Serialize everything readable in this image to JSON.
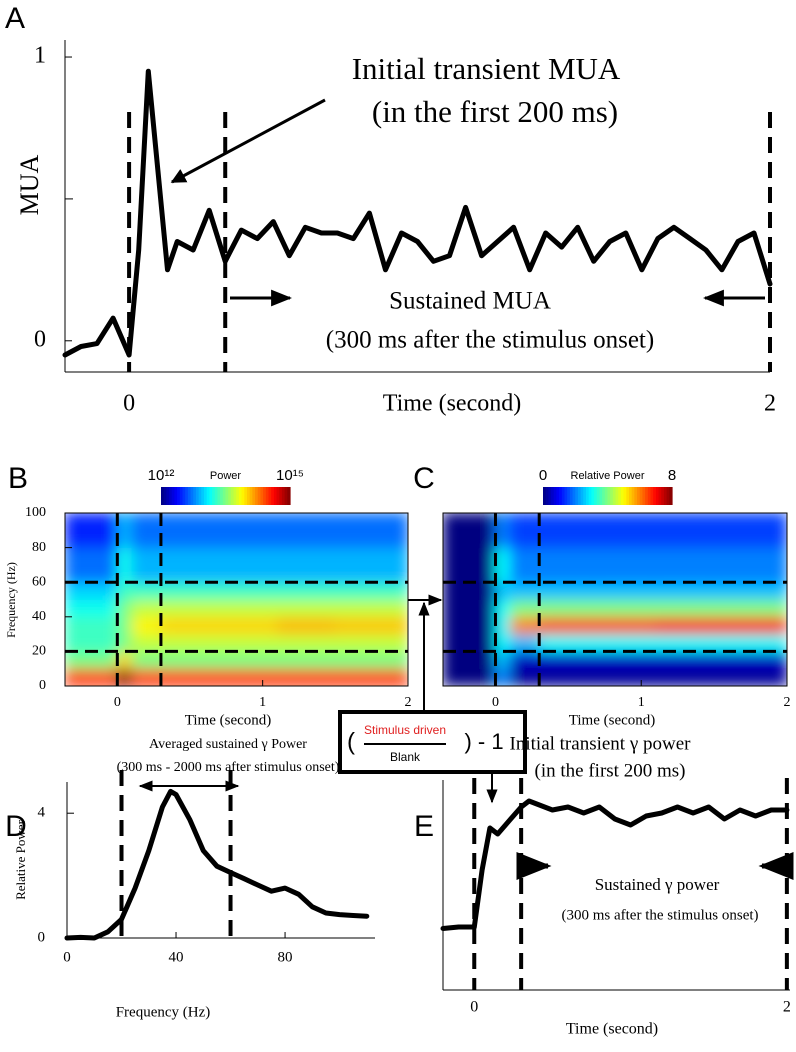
{
  "chart_data": [
    {
      "type": "line",
      "panel_label": "A",
      "ylabel": "MUA",
      "xlabel": "Time (second)",
      "x": [
        -0.2,
        -0.15,
        -0.1,
        -0.05,
        0,
        0.03,
        0.06,
        0.09,
        0.12,
        0.15,
        0.2,
        0.25,
        0.3,
        0.35,
        0.4,
        0.45,
        0.5,
        0.55,
        0.6,
        0.65,
        0.7,
        0.75,
        0.8,
        0.85,
        0.9,
        0.95,
        1.0,
        1.05,
        1.1,
        1.15,
        1.2,
        1.25,
        1.3,
        1.35,
        1.4,
        1.45,
        1.5,
        1.55,
        1.6,
        1.65,
        1.7,
        1.75,
        1.8,
        1.85,
        1.9,
        1.95,
        2.0
      ],
      "values": [
        -0.05,
        -0.02,
        -0.01,
        0.08,
        -0.05,
        0.32,
        0.95,
        0.6,
        0.25,
        0.35,
        0.32,
        0.46,
        0.28,
        0.39,
        0.36,
        0.42,
        0.3,
        0.4,
        0.38,
        0.38,
        0.36,
        0.45,
        0.25,
        0.38,
        0.35,
        0.28,
        0.3,
        0.47,
        0.3,
        0.35,
        0.4,
        0.25,
        0.38,
        0.33,
        0.4,
        0.28,
        0.35,
        0.38,
        0.25,
        0.36,
        0.4,
        0.36,
        0.32,
        0.25,
        0.35,
        0.38,
        0.2
      ],
      "color": "#000000",
      "xlim": [
        -0.2,
        2.0
      ],
      "ylim": [
        -0.11,
        1.06
      ],
      "xticks": [
        0,
        2
      ],
      "yticks": [
        0,
        1
      ],
      "yminorticks": [
        0.5
      ],
      "vlines": [
        0,
        0.3,
        2
      ],
      "annotations": [
        "Initial transient MUA",
        "(in the first 200 ms)",
        "Sustained MUA",
        "(300 ms after the stimulus onset)"
      ]
    },
    {
      "type": "heatmap",
      "panel_label": "B",
      "ylabel": "Frequency (Hz)",
      "xlabel": "Time (second)",
      "x_edges": [
        -0.36,
        0,
        0.1,
        0.3,
        0.7,
        1.1,
        1.5,
        2.0
      ],
      "y_edges": [
        0,
        10,
        20,
        30,
        40,
        50,
        60,
        80,
        100
      ],
      "z": [
        [
          300000000000000.0,
          1000000000000000.0,
          300000000000000.0,
          300000000000000.0,
          300000000000000.0,
          300000000000000.0,
          300000000000000.0
        ],
        [
          30000000000000.0,
          100000000000000.0,
          30000000000000.0,
          30000000000000.0,
          30000000000000.0,
          30000000000000.0,
          30000000000000.0
        ],
        [
          20000000000000.0,
          30000000000000.0,
          50000000000000.0,
          50000000000000.0,
          50000000000000.0,
          50000000000000.0,
          50000000000000.0
        ],
        [
          20000000000000.0,
          30000000000000.0,
          80000000000000.0,
          100000000000000.0,
          100000000000000.0,
          120000000000000.0,
          110000000000000.0
        ],
        [
          15000000000000.0,
          30000000000000.0,
          50000000000000.0,
          50000000000000.0,
          50000000000000.0,
          50000000000000.0,
          50000000000000.0
        ],
        [
          10000000000000.0,
          20000000000000.0,
          20000000000000.0,
          20000000000000.0,
          20000000000000.0,
          20000000000000.0,
          20000000000000.0
        ],
        [
          5000000000000.0,
          15000000000000.0,
          8000000000000.0,
          8000000000000.0,
          8000000000000.0,
          8000000000000.0,
          8000000000000.0
        ],
        [
          3000000000000.0,
          8000000000000.0,
          5000000000000.0,
          5000000000000.0,
          5000000000000.0,
          5000000000000.0,
          5000000000000.0
        ]
      ],
      "colormap": "jet",
      "color_scale": "log",
      "clim": [
        1000000000000.0,
        1000000000000000.0
      ],
      "cticks": [
        {
          "value": 1000000000000.0,
          "label": "10¹²"
        },
        {
          "value": 1000000000000000.0,
          "label": "10¹⁵"
        }
      ],
      "clabel": "Power",
      "xlim": [
        -0.36,
        2.0
      ],
      "ylim": [
        0,
        100
      ],
      "xticks": [
        0,
        1,
        2
      ],
      "yticks": [
        0,
        20,
        40,
        60,
        80,
        100
      ],
      "vlines": [
        0,
        0.3
      ],
      "hlines": [
        20,
        60
      ]
    },
    {
      "type": "heatmap",
      "panel_label": "C",
      "xlabel": "Time (second)",
      "x_edges": [
        -0.36,
        0,
        0.1,
        0.3,
        0.7,
        1.1,
        1.5,
        2.0
      ],
      "y_edges": [
        0,
        10,
        20,
        30,
        40,
        50,
        60,
        80,
        100
      ],
      "z": [
        [
          0,
          2,
          0.2,
          0.2,
          0.2,
          0.2,
          0.2
        ],
        [
          0,
          2.5,
          0.5,
          0.5,
          0.5,
          0.5,
          0.5
        ],
        [
          0,
          3,
          2.5,
          3,
          3,
          3,
          3
        ],
        [
          0,
          3,
          6,
          6.5,
          6.5,
          7,
          7
        ],
        [
          0,
          3,
          4,
          4,
          4,
          4,
          4
        ],
        [
          0,
          2.5,
          2.5,
          2.5,
          2.5,
          2.5,
          2.5
        ],
        [
          0,
          3,
          2,
          2,
          2,
          2,
          2
        ],
        [
          0,
          2,
          1.5,
          1.5,
          1.5,
          1.5,
          1.5
        ]
      ],
      "colormap": "jet",
      "color_scale": "linear",
      "clim": [
        0,
        8
      ],
      "cticks": [
        0,
        8
      ],
      "clabel": "Relative Power",
      "xlim": [
        -0.36,
        2.0
      ],
      "ylim": [
        0,
        100
      ],
      "xticks": [
        0,
        1,
        2
      ],
      "vlines": [
        0,
        0.3
      ],
      "hlines": [
        20,
        60
      ]
    },
    {
      "type": "line",
      "panel_label": "D",
      "ylabel": "Relative Power",
      "xlabel": "Frequency (Hz)",
      "x": [
        0,
        5,
        10,
        15,
        20,
        25,
        30,
        35,
        38,
        40,
        45,
        50,
        55,
        60,
        65,
        70,
        75,
        80,
        85,
        90,
        95,
        100,
        105,
        110
      ],
      "values": [
        0,
        0.02,
        0,
        0.2,
        0.6,
        1.6,
        2.8,
        4.2,
        4.7,
        4.6,
        3.8,
        2.8,
        2.3,
        2.1,
        1.9,
        1.7,
        1.5,
        1.6,
        1.4,
        1.0,
        0.8,
        0.75,
        0.72,
        0.7
      ],
      "color": "#000000",
      "xlim": [
        0,
        113
      ],
      "ylim": [
        0,
        5
      ],
      "xticks": [
        0,
        40,
        80
      ],
      "yticks": [
        0,
        4
      ],
      "vlines": [
        20,
        60
      ],
      "annotations": [
        "Averaged sustained γ Power",
        "(300 ms - 2000 ms after stimulus onset)"
      ]
    },
    {
      "type": "line",
      "panel_label": "E",
      "xlabel": "Time (second)",
      "x": [
        -0.2,
        -0.1,
        -0.05,
        0,
        0.05,
        0.1,
        0.15,
        0.2,
        0.25,
        0.3,
        0.35,
        0.4,
        0.5,
        0.6,
        0.7,
        0.8,
        0.9,
        1.0,
        1.1,
        1.2,
        1.3,
        1.4,
        1.5,
        1.6,
        1.7,
        1.8,
        1.9,
        2.0
      ],
      "values": [
        0.05,
        0.1,
        0.1,
        0.1,
        2.0,
        3.4,
        3.2,
        3.5,
        3.8,
        4.1,
        4.3,
        4.2,
        4.0,
        4.1,
        3.9,
        4.1,
        3.7,
        3.5,
        3.8,
        3.9,
        4.1,
        3.9,
        4.1,
        3.7,
        4.0,
        3.8,
        4.0,
        4.0
      ],
      "color": "#000000",
      "xlim": [
        -0.2,
        2.02
      ],
      "ylim": [
        -2,
        5
      ],
      "xticks": [
        0,
        2
      ],
      "vlines": [
        0,
        0.3,
        2
      ],
      "annotations": [
        "Initial transient γ power",
        "(in the first 200 ms)",
        "Sustained γ power",
        "(300 ms after the stimulus onset)"
      ]
    }
  ],
  "formula": {
    "open": "(",
    "numerator": "Stimulus driven",
    "denominator": "Blank",
    "close": ") - 1"
  }
}
